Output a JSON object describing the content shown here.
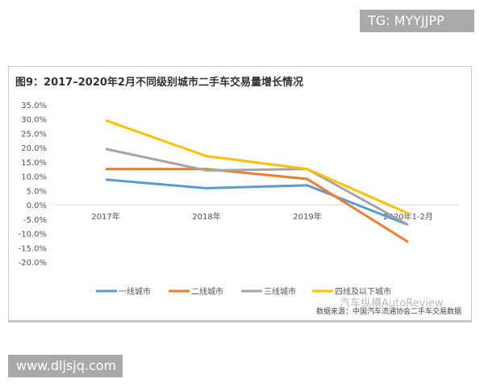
{
  "watermark_top": "TG: MYYJJPP",
  "watermark_bottom": "www.dljsjq.com",
  "watermark_overlay": "汽车纵横AutoReview",
  "chart_data": {
    "type": "line",
    "title": "图9：2017–2020年2月不同级别城市二手车交易量增长情况",
    "categories": [
      "2017年",
      "2018年",
      "2019年",
      "2020年1-2月"
    ],
    "ylim": [
      -20,
      35
    ],
    "yticks": [
      "35.0%",
      "30.0%",
      "25.0%",
      "20.0%",
      "15.0%",
      "10.0%",
      "5.0%",
      "0.0%",
      "-5.0%",
      "-10.0%",
      "-15.0%",
      "-20.0%"
    ],
    "ytick_values": [
      35,
      30,
      25,
      20,
      15,
      10,
      5,
      0,
      -5,
      -10,
      -15,
      -20
    ],
    "legend_position": "bottom",
    "grid": false,
    "series": [
      {
        "name": "一线城市",
        "color": "#5b9bd5",
        "values": [
          8.8,
          5.8,
          6.8,
          -7.0
        ]
      },
      {
        "name": "二线城市",
        "color": "#ed7d31",
        "values": [
          12.5,
          12.5,
          9.0,
          -13.0
        ]
      },
      {
        "name": "三线城市",
        "color": "#a5a5a5",
        "values": [
          19.5,
          12.0,
          12.5,
          -7.0
        ]
      },
      {
        "name": "四线及以下城市",
        "color": "#ffc000",
        "values": [
          29.5,
          17.0,
          12.5,
          -3.0
        ]
      }
    ],
    "source": "数据来源：中国汽车流通协会二手车交易数据"
  }
}
